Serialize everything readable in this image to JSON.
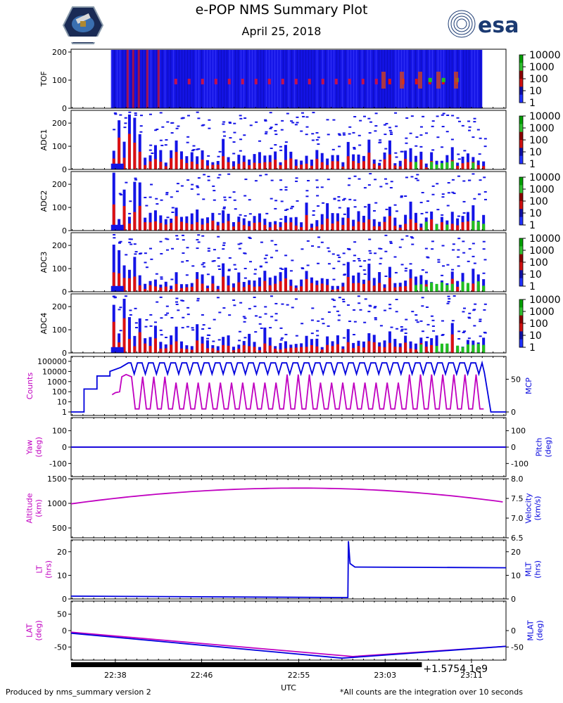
{
  "header": {
    "title": "e-POP NMS Summary Plot",
    "subtitle": "April 25, 2018",
    "logo_left": "mission-patch-logo",
    "logo_right": "esa"
  },
  "footer": {
    "left": "Produced by nms_summary version 2",
    "right": "*All counts are the integration over 10 seconds",
    "xlabel": "UTC",
    "offset": "+1.5754 1e9"
  },
  "colors": {
    "magenta": "#c000c0",
    "blue": "#0000dd",
    "spec_blue": "#1414e6",
    "spec_red": "#dd1010",
    "spec_green": "#20c020"
  },
  "chart_data": [
    {
      "type": "heatmap",
      "name": "TOF",
      "ylabel": "TOF",
      "yticks": [
        "0",
        "100",
        "200"
      ],
      "ylim": [
        0,
        210
      ],
      "colorbar": [
        "1",
        "10",
        "100",
        "1000",
        "10000"
      ]
    },
    {
      "type": "heatmap",
      "name": "ADC1",
      "ylabel": "ADC1",
      "yticks": [
        "0",
        "100",
        "200"
      ],
      "ylim": [
        0,
        255
      ],
      "colorbar": [
        "1",
        "10",
        "100",
        "1000",
        "10000"
      ]
    },
    {
      "type": "heatmap",
      "name": "ADC2",
      "ylabel": "ADC2",
      "yticks": [
        "0",
        "100",
        "200"
      ],
      "ylim": [
        0,
        255
      ],
      "colorbar": [
        "1",
        "10",
        "100",
        "1000",
        "10000"
      ]
    },
    {
      "type": "heatmap",
      "name": "ADC3",
      "ylabel": "ADC3",
      "yticks": [
        "0",
        "100",
        "200"
      ],
      "ylim": [
        0,
        255
      ],
      "colorbar": [
        "1",
        "10",
        "100",
        "1000",
        "10000"
      ]
    },
    {
      "type": "heatmap",
      "name": "ADC4",
      "ylabel": "ADC4",
      "yticks": [
        "0",
        "100",
        "200"
      ],
      "ylim": [
        0,
        255
      ],
      "colorbar": [
        "1",
        "10",
        "100",
        "1000",
        "10000"
      ]
    },
    {
      "type": "line",
      "name": "counts-mcp",
      "ylabel_left": "Counts",
      "ylabel_right": "MCP",
      "yticks_left": [
        "1",
        "10",
        "100",
        "1000",
        "10000",
        "100000"
      ],
      "yticks_right": [
        "0",
        "50"
      ],
      "series": [
        {
          "name": "Counts",
          "color": "magenta",
          "scale": "log",
          "description": "oscillating 10^0.5 to 10^3.7 from 22:39 to 23:12"
        },
        {
          "name": "MCP",
          "color": "blue",
          "range": [
            0,
            75
          ],
          "description": "steps up to ~70 by 22:37, oscillates 58-75, drops to 0 after 23:12"
        }
      ]
    },
    {
      "type": "line",
      "name": "yaw-pitch",
      "ylabel_left": "Yaw\n(deg)",
      "ylabel_right": "Pitch\n(deg)",
      "yticks_left": [
        "-100",
        "0",
        "100"
      ],
      "yticks_right": [
        "-100",
        "0",
        "100"
      ],
      "ylim": [
        -180,
        180
      ],
      "series": [
        {
          "name": "Yaw",
          "color": "magenta",
          "constant": 0
        },
        {
          "name": "Pitch",
          "color": "blue",
          "constant": 0
        }
      ]
    },
    {
      "type": "line",
      "name": "altitude-velocity",
      "ylabel_left": "Altitude\n(km)",
      "ylabel_right": "Velocity\n(km/s)",
      "yticks_left": [
        "500",
        "1000",
        "1500"
      ],
      "ylim_left": [
        300,
        1500
      ],
      "yticks_right": [
        "6.5",
        "7.0",
        "7.5",
        "8.0"
      ],
      "ylim_right": [
        6.5,
        8.0
      ],
      "series": [
        {
          "name": "Altitude",
          "color": "magenta",
          "start": 990,
          "peak": 1310,
          "peak_time": "22:55",
          "end": 1020
        }
      ]
    },
    {
      "type": "line",
      "name": "lt-mlt",
      "ylabel_left": "LT\n(hrs)",
      "ylabel_right": "MLT\n(hrs)",
      "yticks_left": [
        "0",
        "10",
        "20"
      ],
      "yticks_right": [
        "0",
        "10",
        "20"
      ],
      "ylim": [
        0,
        25
      ],
      "series": [
        {
          "name": "LT",
          "color": "blue",
          "before_jump": 1.2,
          "jump_time": "22:59",
          "jump_peak": 24.5,
          "after_jump": 13.5
        }
      ]
    },
    {
      "type": "line",
      "name": "lat-mlat",
      "ylabel_left": "LAT\n(deg)",
      "ylabel_right": "MLAT\n(deg)",
      "yticks_left": [
        "-50",
        "0",
        "50"
      ],
      "yticks_right": [
        "-50",
        "0"
      ],
      "ylim": [
        -90,
        90
      ],
      "xticks": [
        "22:38",
        "22:46",
        "22:55",
        "23:03",
        "23:11"
      ],
      "series": [
        {
          "name": "LAT",
          "color": "magenta",
          "start": -5,
          "min": -79,
          "min_time": "23:00",
          "end": -48
        },
        {
          "name": "MLAT",
          "color": "blue",
          "start": -8,
          "min": -84,
          "min_time": "22:59",
          "end": -48
        }
      ]
    }
  ]
}
